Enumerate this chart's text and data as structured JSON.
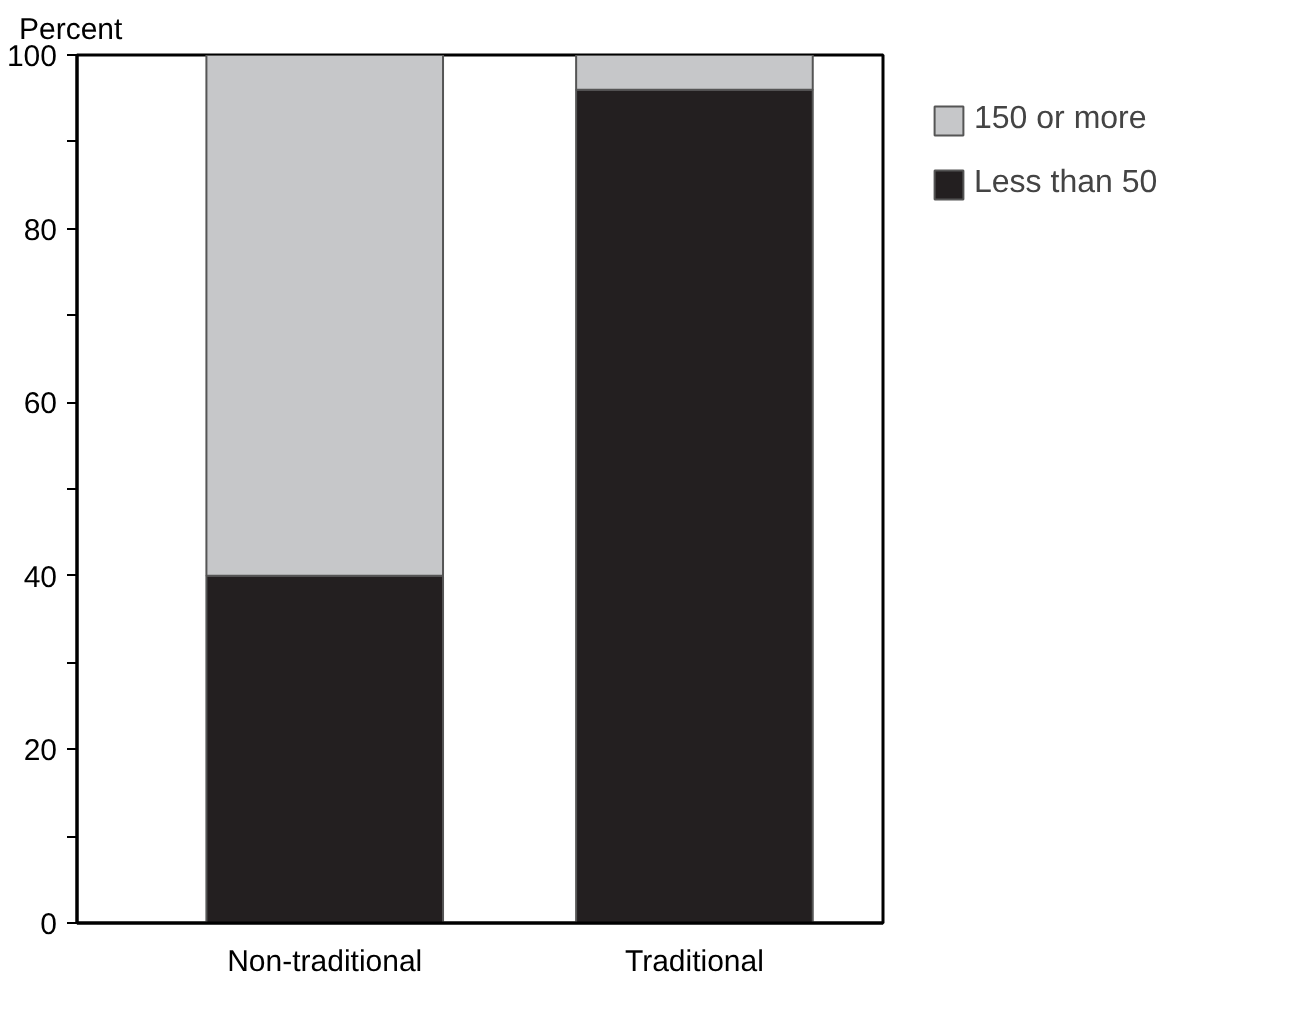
{
  "chart_data": {
    "type": "bar",
    "stacked": true,
    "ylabel": "Percent",
    "categories": [
      "Non-traditional",
      "Traditional"
    ],
    "series": [
      {
        "name": "Less than 50",
        "color": "#231f20",
        "values": [
          40,
          96
        ]
      },
      {
        "name": "150 or more",
        "color": "#c6c7c9",
        "values": [
          60,
          4
        ]
      }
    ],
    "ylim": [
      0,
      100
    ],
    "yticks": [
      0,
      {
        "value": 10,
        "label": null
      },
      20,
      {
        "value": 30,
        "label": null
      },
      40,
      {
        "value": 50,
        "label": null
      },
      60,
      {
        "value": 70,
        "label": null
      },
      80,
      {
        "value": 90,
        "label": null
      },
      100
    ],
    "grid": false,
    "legend": "right"
  }
}
